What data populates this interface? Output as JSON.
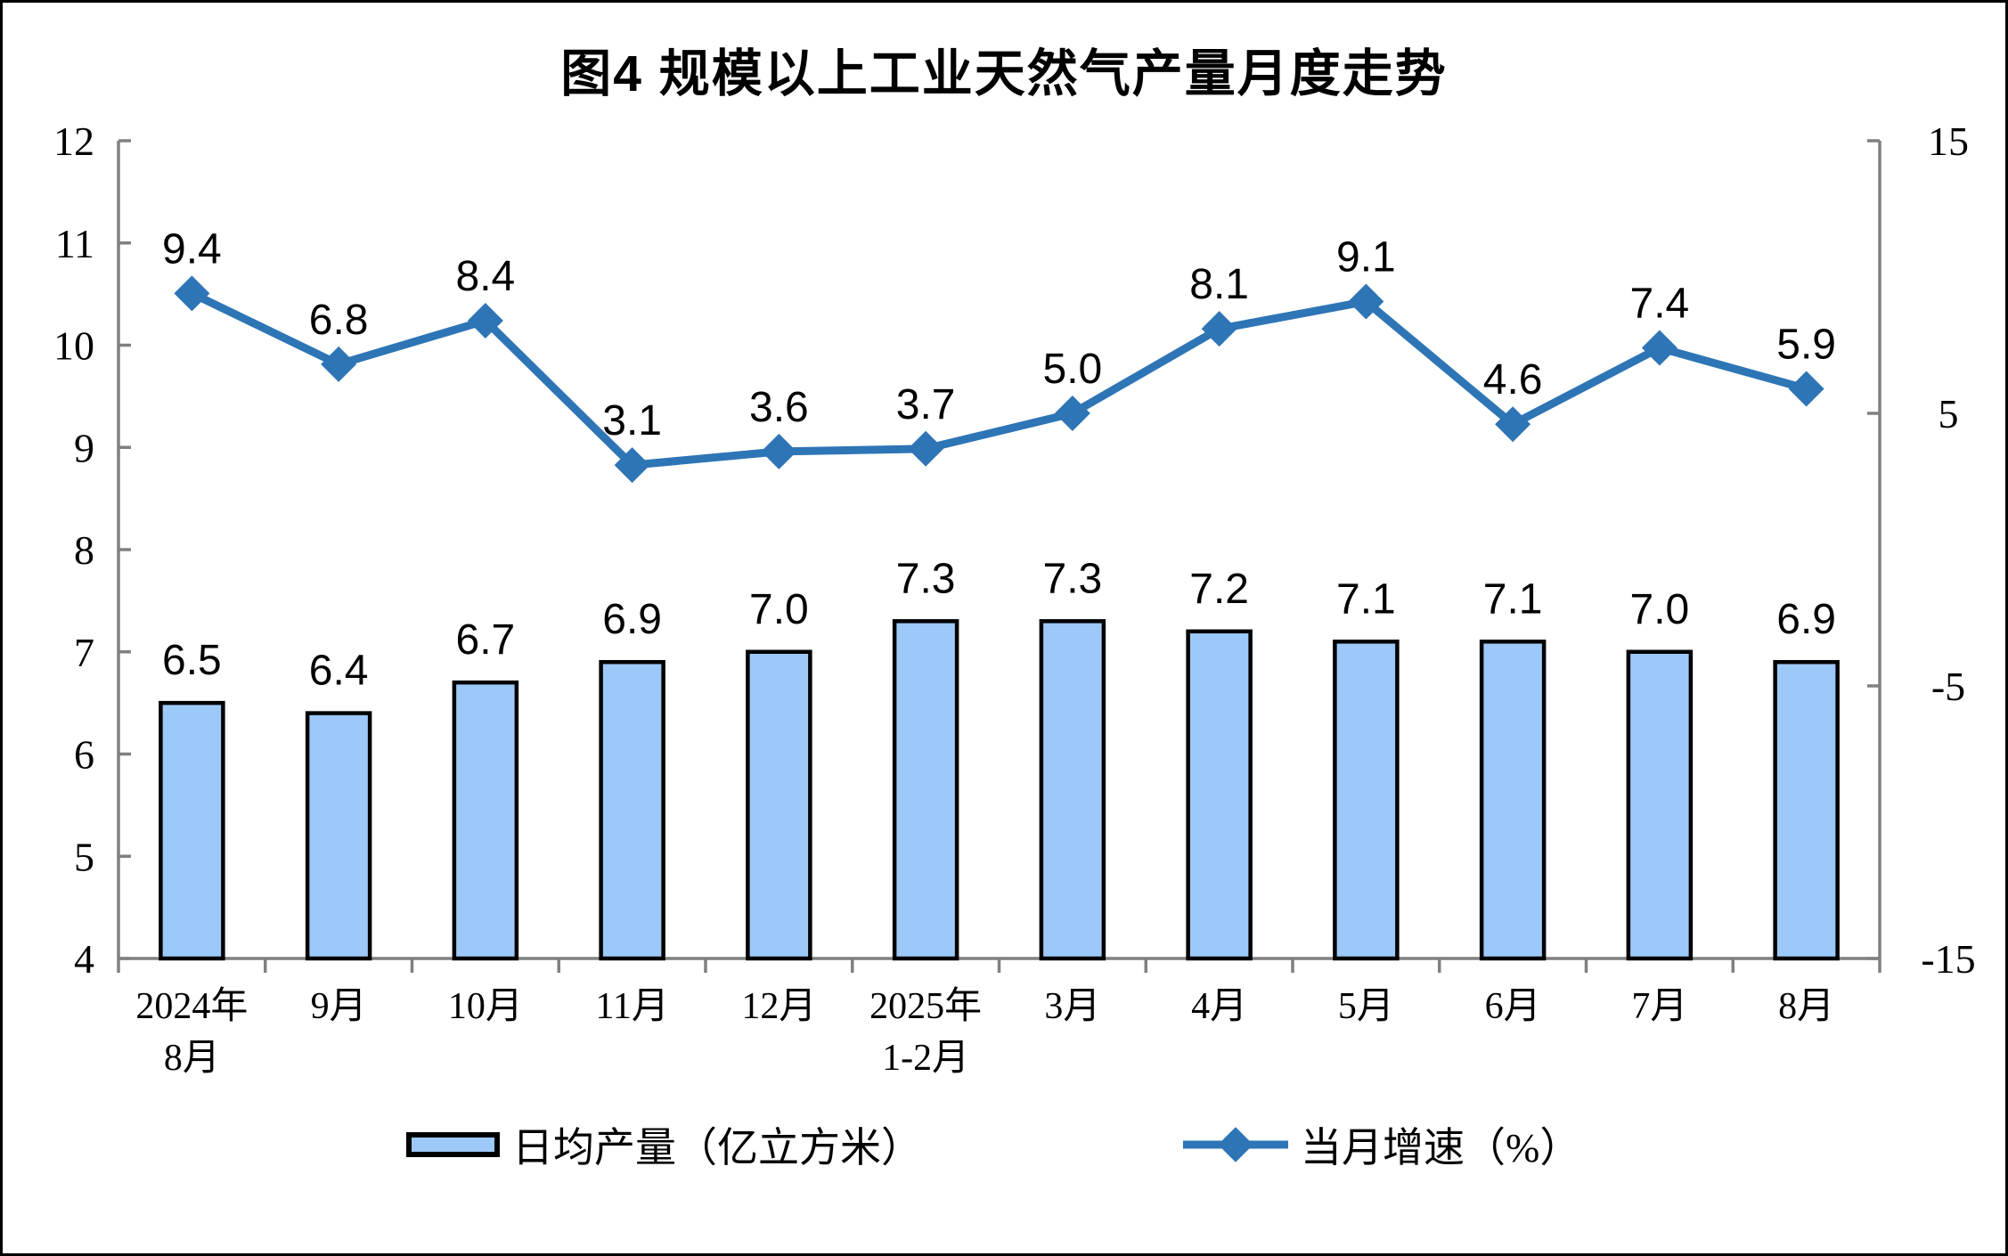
{
  "chart_data": {
    "type": "combo",
    "title": "图4 规模以上工业天然气产量月度走势",
    "categories": [
      "2024年\n8月",
      "9月",
      "10月",
      "11月",
      "12月",
      "2025年\n1-2月",
      "3月",
      "4月",
      "5月",
      "6月",
      "7月",
      "8月"
    ],
    "series": [
      {
        "name": "日均产量（亿立方米）",
        "type": "bar",
        "axis": "left",
        "values": [
          6.5,
          6.4,
          6.7,
          6.9,
          7.0,
          7.3,
          7.3,
          7.2,
          7.1,
          7.1,
          7.0,
          6.9
        ],
        "fill": "#9DC9F8",
        "stroke": "#000000"
      },
      {
        "name": "当月增速（%）",
        "type": "line",
        "axis": "right",
        "values": [
          9.4,
          6.8,
          8.4,
          3.1,
          3.6,
          3.7,
          5.0,
          8.1,
          9.1,
          4.6,
          7.4,
          5.9
        ],
        "color": "#2E75B6",
        "marker": "diamond"
      }
    ],
    "left_axis": {
      "min": 4,
      "max": 12,
      "ticks": [
        4,
        5,
        6,
        7,
        8,
        9,
        10,
        11,
        12
      ]
    },
    "right_axis": {
      "min": -15,
      "max": 15,
      "ticks": [
        -15,
        -5,
        5,
        15
      ]
    },
    "axis_color": "#808080",
    "label_color": "#000000",
    "grid": false,
    "data_labels": true,
    "legend_position": "bottom"
  }
}
